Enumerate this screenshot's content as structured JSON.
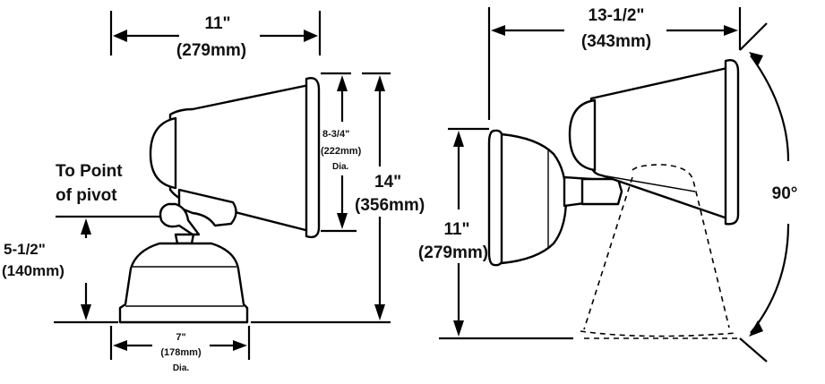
{
  "dimensions": {
    "left_width": {
      "value": "11\"",
      "metric": "(279mm)"
    },
    "mouth_dia": {
      "value": "8-3/4\"",
      "metric": "(222mm)",
      "note": "Dia."
    },
    "overall_height": {
      "value": "14\"",
      "metric": "(356mm)"
    },
    "pivot_height": {
      "value": "5-1/2\"",
      "metric": "(140mm)"
    },
    "base_dia": {
      "value": "7\"",
      "metric": "(178mm)",
      "note": "Dia."
    },
    "right_width": {
      "value": "13-1/2\"",
      "metric": "(343mm)"
    },
    "right_height": {
      "value": "11\"",
      "metric": "(279mm)"
    },
    "rotation": {
      "value": "90°"
    }
  },
  "pivot_label": {
    "line1": "To Point",
    "line2": "of pivot"
  }
}
